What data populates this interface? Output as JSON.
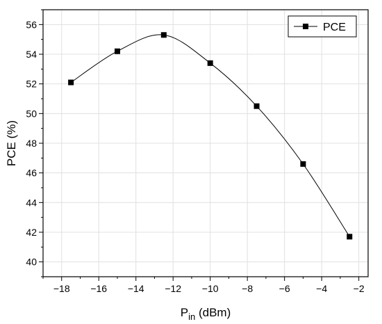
{
  "chart_data": {
    "type": "line",
    "title": "",
    "xlabel": {
      "main": "P",
      "subscript": "in",
      "unit": " (dBm)"
    },
    "ylabel": "PCE (%)",
    "xlim": [
      -19,
      -1.5
    ],
    "ylim": [
      39,
      57
    ],
    "xticks": [
      -18,
      -16,
      -14,
      -12,
      -10,
      -8,
      -6,
      -4,
      -2
    ],
    "yticks": [
      40,
      42,
      44,
      46,
      48,
      50,
      52,
      54,
      56
    ],
    "grid": true,
    "legend": {
      "position": "top-right"
    },
    "series": [
      {
        "name": "PCE",
        "marker": "square",
        "color": "#000000",
        "points": [
          {
            "x": -17.5,
            "y": 52.1
          },
          {
            "x": -15.0,
            "y": 54.2
          },
          {
            "x": -12.5,
            "y": 55.3
          },
          {
            "x": -10.0,
            "y": 53.4
          },
          {
            "x": -7.5,
            "y": 50.5
          },
          {
            "x": -5.0,
            "y": 46.6
          },
          {
            "x": -2.5,
            "y": 41.7
          }
        ]
      }
    ],
    "colors": {
      "grid": "#e0e0e0",
      "axis": "#000000",
      "series": "#000000"
    }
  }
}
